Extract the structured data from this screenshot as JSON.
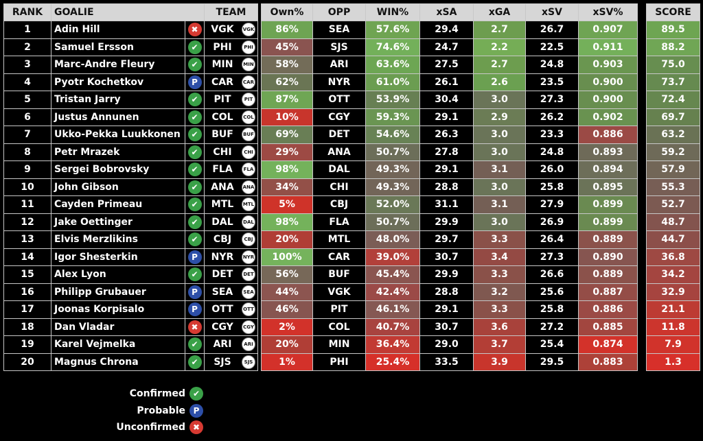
{
  "headers": {
    "rank": "RANK",
    "goalie": "GOALIE",
    "team": "TEAM",
    "own": "Own%",
    "opp": "OPP",
    "win": "WIN%",
    "xsa": "xSA",
    "xga": "xGA",
    "xsv": "xSV",
    "xsvp": "xSV%",
    "score": "SCORE"
  },
  "status_glyphs": {
    "confirmed": "✔",
    "probable": "P",
    "unconfirmed": "✖"
  },
  "legend": [
    {
      "status": "confirmed",
      "label": "Confirmed"
    },
    {
      "status": "probable",
      "label": "Probable"
    },
    {
      "status": "unconfirmed",
      "label": "Unconfirmed"
    }
  ],
  "rows": [
    {
      "rank": "1",
      "goalie": "Adin Hill",
      "status": "unconfirmed",
      "team": "VGK",
      "logo": "vgk-logo-icon",
      "own": "86%",
      "opp": "SEA",
      "win": "57.6%",
      "xsa": "29.4",
      "xga": "2.7",
      "xsv": "26.7",
      "xsvp": "0.907",
      "score": "89.5",
      "colors": {
        "own": "#6ea453",
        "win": "#6fa452",
        "xsa": "#000000",
        "xga": "#6d9d4f",
        "xsv": "#000000",
        "xsvp": "#6fa453",
        "score": "#6ea552"
      }
    },
    {
      "rank": "2",
      "goalie": "Samuel Ersson",
      "status": "confirmed",
      "team": "PHI",
      "logo": "phi-logo-icon",
      "own": "45%",
      "opp": "SJS",
      "win": "74.6%",
      "xsa": "24.7",
      "xga": "2.2",
      "xsv": "22.5",
      "xsvp": "0.911",
      "score": "88.2",
      "colors": {
        "own": "#8a5450",
        "win": "#73b05a",
        "xsa": "#000000",
        "xga": "#75ad56",
        "xsv": "#000000",
        "xsvp": "#74b05a",
        "score": "#70a655"
      }
    },
    {
      "rank": "3",
      "goalie": "Marc-Andre Fleury",
      "status": "confirmed",
      "team": "MIN",
      "logo": "min-logo-icon",
      "own": "58%",
      "opp": "ARI",
      "win": "63.6%",
      "xsa": "27.5",
      "xga": "2.7",
      "xsv": "24.8",
      "xsvp": "0.903",
      "score": "75.0",
      "colors": {
        "own": "#736c58",
        "win": "#6da653",
        "xsa": "#000000",
        "xga": "#6d9d4f",
        "xsv": "#000000",
        "xsvp": "#6a9650",
        "score": "#678e50"
      }
    },
    {
      "rank": "4",
      "goalie": "Pyotr Kochetkov",
      "status": "probable",
      "team": "CAR",
      "logo": "car-logo-icon",
      "own": "62%",
      "opp": "NYR",
      "win": "61.0%",
      "xsa": "26.1",
      "xga": "2.6",
      "xsv": "23.5",
      "xsvp": "0.900",
      "score": "73.7",
      "colors": {
        "own": "#6a7554",
        "win": "#6b9d51",
        "xsa": "#000000",
        "xga": "#6ba051",
        "xsv": "#000000",
        "xsvp": "#688e4f",
        "score": "#668a50"
      }
    },
    {
      "rank": "5",
      "goalie": "Tristan Jarry",
      "status": "confirmed",
      "team": "PIT",
      "logo": "pit-logo-icon",
      "own": "87%",
      "opp": "OTT",
      "win": "53.9%",
      "xsa": "30.4",
      "xga": "3.0",
      "xsv": "27.3",
      "xsvp": "0.900",
      "score": "72.4",
      "colors": {
        "own": "#6fa654",
        "win": "#677f53",
        "xsa": "#000000",
        "xga": "#6a7458",
        "xsv": "#000000",
        "xsvp": "#688e4f",
        "score": "#66874f"
      }
    },
    {
      "rank": "6",
      "goalie": "Justus Annunen",
      "status": "confirmed",
      "team": "COL",
      "logo": "col-logo-icon",
      "own": "10%",
      "opp": "CGY",
      "win": "59.3%",
      "xsa": "29.1",
      "xga": "2.9",
      "xsv": "26.2",
      "xsvp": "0.902",
      "score": "69.7",
      "colors": {
        "own": "#c8352c",
        "win": "#6a9552",
        "xsa": "#000000",
        "xga": "#6b7c55",
        "xsv": "#000000",
        "xsvp": "#699250",
        "score": "#66814f"
      }
    },
    {
      "rank": "7",
      "goalie": "Ukko-Pekka Luukkonen",
      "status": "confirmed",
      "team": "BUF",
      "logo": "buf-logo-icon",
      "own": "69%",
      "opp": "DET",
      "win": "54.6%",
      "xsa": "26.3",
      "xga": "3.0",
      "xsv": "23.3",
      "xsvp": "0.886",
      "score": "63.2",
      "colors": {
        "own": "#697e55",
        "win": "#688255",
        "xsa": "#000000",
        "xga": "#6a7458",
        "xsv": "#000000",
        "xsvp": "#9b4a45",
        "score": "#6a7255"
      }
    },
    {
      "rank": "8",
      "goalie": "Petr Mrazek",
      "status": "confirmed",
      "team": "CHI",
      "logo": "chi-logo-icon",
      "own": "29%",
      "opp": "ANA",
      "win": "50.7%",
      "xsa": "27.8",
      "xga": "3.0",
      "xsv": "24.8",
      "xsvp": "0.893",
      "score": "59.2",
      "colors": {
        "own": "#9d4a44",
        "win": "#6c6e59",
        "xsa": "#000000",
        "xga": "#6a7458",
        "xsv": "#000000",
        "xsvp": "#6e6a58",
        "score": "#6e6a58"
      }
    },
    {
      "rank": "9",
      "goalie": "Sergei Bobrovsky",
      "status": "confirmed",
      "team": "FLA",
      "logo": "fla-logo-icon",
      "own": "98%",
      "opp": "DAL",
      "win": "49.3%",
      "xsa": "29.1",
      "xga": "3.1",
      "xsv": "26.0",
      "xsvp": "0.894",
      "score": "57.9",
      "colors": {
        "own": "#74b25b",
        "win": "#726558",
        "xsa": "#000000",
        "xga": "#745f55",
        "xsv": "#000000",
        "xsvp": "#6d6e59",
        "score": "#726657"
      }
    },
    {
      "rank": "10",
      "goalie": "John Gibson",
      "status": "confirmed",
      "team": "ANA",
      "logo": "ana-logo-icon",
      "own": "34%",
      "opp": "CHI",
      "win": "49.3%",
      "xsa": "28.8",
      "xga": "3.0",
      "xsv": "25.8",
      "xsvp": "0.895",
      "score": "55.3",
      "colors": {
        "own": "#935048",
        "win": "#726558",
        "xsa": "#000000",
        "xga": "#6a7458",
        "xsv": "#000000",
        "xsvp": "#6b7358",
        "score": "#775e55"
      }
    },
    {
      "rank": "11",
      "goalie": "Cayden Primeau",
      "status": "confirmed",
      "team": "MTL",
      "logo": "mtl-logo-icon",
      "own": "5%",
      "opp": "CBJ",
      "win": "52.0%",
      "xsa": "31.1",
      "xga": "3.1",
      "xsv": "27.9",
      "xsvp": "0.899",
      "score": "52.7",
      "colors": {
        "own": "#cf3329",
        "win": "#6a7857",
        "xsa": "#000000",
        "xga": "#745f55",
        "xsv": "#000000",
        "xsvp": "#6a8a51",
        "score": "#7c5a52"
      }
    },
    {
      "rank": "12",
      "goalie": "Jake Oettinger",
      "status": "confirmed",
      "team": "DAL",
      "logo": "dal-logo-icon",
      "own": "98%",
      "opp": "FLA",
      "win": "50.7%",
      "xsa": "29.9",
      "xga": "3.0",
      "xsv": "26.9",
      "xsvp": "0.899",
      "score": "48.7",
      "colors": {
        "own": "#74b25b",
        "win": "#6c6e59",
        "xsa": "#000000",
        "xga": "#6a7458",
        "xsv": "#000000",
        "xsvp": "#6a8a51",
        "score": "#83544e"
      }
    },
    {
      "rank": "13",
      "goalie": "Elvis Merzlikins",
      "status": "confirmed",
      "team": "CBJ",
      "logo": "cbj-logo-icon",
      "own": "20%",
      "opp": "MTL",
      "win": "48.0%",
      "xsa": "29.7",
      "xga": "3.3",
      "xsv": "26.4",
      "xsvp": "0.889",
      "score": "44.7",
      "colors": {
        "own": "#b03e36",
        "win": "#7b5d56",
        "xsa": "#000000",
        "xga": "#8a5149",
        "xsv": "#000000",
        "xsvp": "#8b524b",
        "score": "#8c4f4a"
      }
    },
    {
      "rank": "14",
      "goalie": "Igor Shesterkin",
      "status": "probable",
      "team": "NYR",
      "logo": "nyr-logo-icon",
      "own": "100%",
      "opp": "CAR",
      "win": "39.0%",
      "xsa": "30.7",
      "xga": "3.4",
      "xsv": "27.3",
      "xsvp": "0.890",
      "score": "36.8",
      "colors": {
        "own": "#75b35c",
        "win": "#b2403a",
        "xsa": "#000000",
        "xga": "#944a44",
        "xsv": "#000000",
        "xsvp": "#865550",
        "score": "#9e4943"
      }
    },
    {
      "rank": "15",
      "goalie": "Alex Lyon",
      "status": "confirmed",
      "team": "DET",
      "logo": "det-logo-icon",
      "own": "56%",
      "opp": "BUF",
      "win": "45.4%",
      "xsa": "29.9",
      "xga": "3.3",
      "xsv": "26.6",
      "xsvp": "0.889",
      "score": "34.2",
      "colors": {
        "own": "#776858",
        "win": "#8a5550",
        "xsa": "#000000",
        "xga": "#8a5149",
        "xsv": "#000000",
        "xsvp": "#8b524b",
        "score": "#a44540"
      }
    },
    {
      "rank": "16",
      "goalie": "Philipp Grubauer",
      "status": "probable",
      "team": "SEA",
      "logo": "sea-logo-icon",
      "own": "44%",
      "opp": "VGK",
      "win": "42.4%",
      "xsa": "28.8",
      "xga": "3.2",
      "xsv": "25.6",
      "xsvp": "0.887",
      "score": "32.9",
      "colors": {
        "own": "#8c5550",
        "win": "#9b4a47",
        "xsa": "#000000",
        "xga": "#7f5850",
        "xsv": "#000000",
        "xsvp": "#944d47",
        "score": "#a6443f"
      }
    },
    {
      "rank": "17",
      "goalie": "Joonas Korpisalo",
      "status": "probable",
      "team": "OTT",
      "logo": "ott-logo-icon",
      "own": "46%",
      "opp": "PIT",
      "win": "46.1%",
      "xsa": "29.1",
      "xga": "3.3",
      "xsv": "25.8",
      "xsvp": "0.886",
      "score": "21.1",
      "colors": {
        "own": "#875550",
        "win": "#855853",
        "xsa": "#000000",
        "xga": "#8a5149",
        "xsv": "#000000",
        "xsvp": "#9b4a45",
        "score": "#bd3b33"
      }
    },
    {
      "rank": "18",
      "goalie": "Dan Vladar",
      "status": "unconfirmed",
      "team": "CGY",
      "logo": "cgy-logo-icon",
      "own": "2%",
      "opp": "COL",
      "win": "40.7%",
      "xsa": "30.7",
      "xga": "3.6",
      "xsv": "27.2",
      "xsvp": "0.885",
      "score": "11.8",
      "colors": {
        "own": "#d2322a",
        "win": "#a8433f",
        "xsa": "#000000",
        "xga": "#a8423b",
        "xsv": "#000000",
        "xsvp": "#a2463f",
        "score": "#cc352d"
      }
    },
    {
      "rank": "19",
      "goalie": "Karel Vejmelka",
      "status": "confirmed",
      "team": "ARI",
      "logo": "ari-logo-icon",
      "own": "20%",
      "opp": "MIN",
      "win": "36.4%",
      "xsa": "29.0",
      "xga": "3.7",
      "xsv": "25.4",
      "xsvp": "0.874",
      "score": "7.9",
      "colors": {
        "own": "#b03e36",
        "win": "#c23a33",
        "xsa": "#000000",
        "xga": "#b33e36",
        "xsv": "#000000",
        "xsvp": "#d3322a",
        "score": "#d1332b"
      }
    },
    {
      "rank": "20",
      "goalie": "Magnus Chrona",
      "status": "confirmed",
      "team": "SJS",
      "logo": "sjs-logo-icon",
      "own": "1%",
      "opp": "PHI",
      "win": "25.4%",
      "xsa": "33.5",
      "xga": "3.9",
      "xsv": "29.5",
      "xsvp": "0.883",
      "score": "1.3",
      "colors": {
        "own": "#d3312a",
        "win": "#d63029",
        "xsa": "#000000",
        "xga": "#c8352c",
        "xsv": "#000000",
        "xsvp": "#ad4138",
        "score": "#d7302a"
      }
    }
  ]
}
